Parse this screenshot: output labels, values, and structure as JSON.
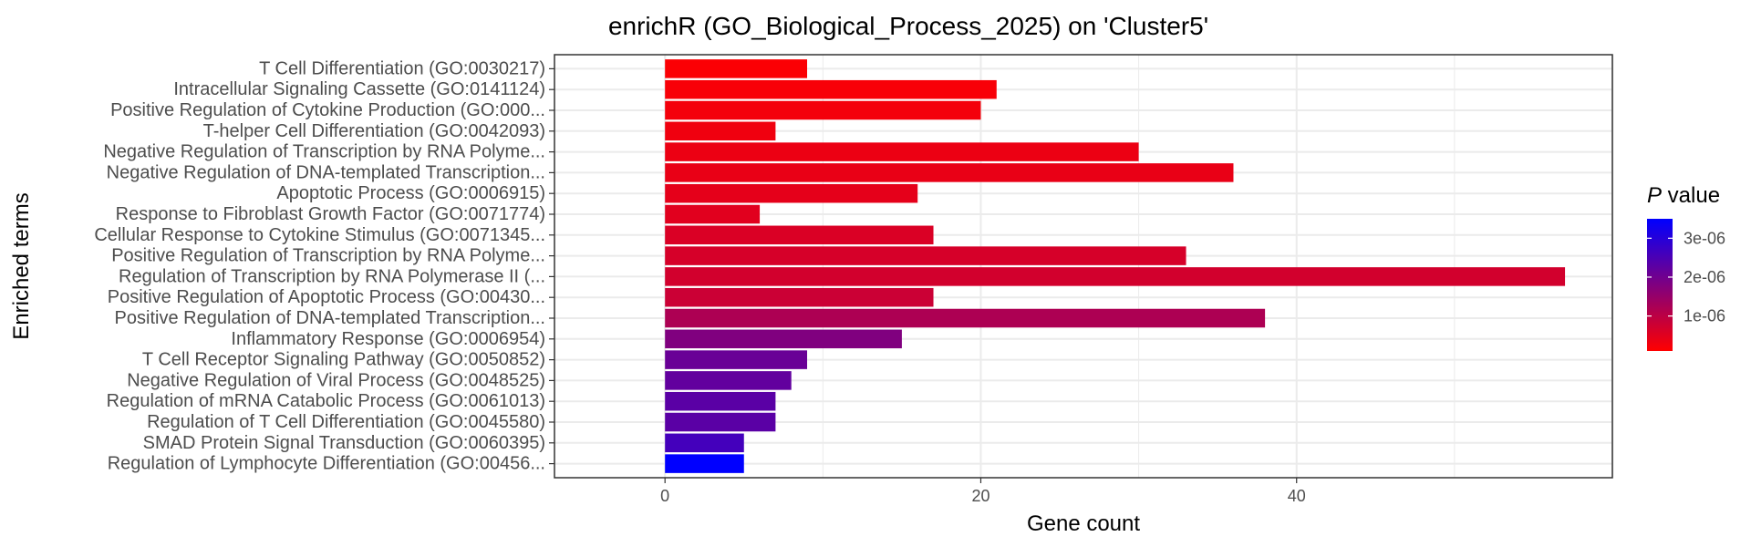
{
  "chart_data": {
    "type": "bar",
    "orientation": "horizontal",
    "title": "enrichR (GO_Biological_Process_2025) on 'Cluster5'",
    "xlabel": "Gene count",
    "ylabel": "Enriched terms",
    "xlim": [
      -7,
      60
    ],
    "xticks": [
      0,
      20,
      40
    ],
    "xtick_labels": [
      "0",
      "20",
      "40"
    ],
    "grid": true,
    "legend": {
      "title_italic": "P",
      "title_rest": " value",
      "placement": "right",
      "color_low": "#ff0000",
      "color_high": "#0000ff",
      "range": [
        1e-07,
        3.5e-06
      ],
      "ticks": [
        1e-06,
        2e-06,
        3e-06
      ],
      "tick_labels": [
        "1e-06",
        "2e-06",
        "3e-06"
      ]
    },
    "categories": [
      "T Cell Differentiation (GO:0030217)",
      "Intracellular Signaling Cassette (GO:0141124)",
      "Positive Regulation of Cytokine Production (GO:000...",
      "T-helper Cell Differentiation (GO:0042093)",
      "Negative Regulation of Transcription by RNA Polyme...",
      "Negative Regulation of DNA-templated Transcription...",
      "Apoptotic Process (GO:0006915)",
      "Response to Fibroblast Growth Factor (GO:0071774)",
      "Cellular Response to Cytokine Stimulus (GO:0071345...",
      "Positive Regulation of Transcription by RNA Polyme...",
      "Regulation of Transcription by RNA Polymerase II (...",
      "Positive Regulation of Apoptotic Process (GO:00430...",
      "Positive Regulation of DNA-templated Transcription...",
      "Inflammatory Response (GO:0006954)",
      "T Cell Receptor Signaling Pathway (GO:0050852)",
      "Negative Regulation of Viral Process (GO:0048525)",
      "Regulation of mRNA Catabolic Process (GO:0061013)",
      "Regulation of T Cell Differentiation (GO:0045580)",
      "SMAD Protein Signal Transduction (GO:0060395)",
      "Regulation of Lymphocyte Differentiation (GO:00456..."
    ],
    "values": [
      9,
      21,
      20,
      7,
      30,
      36,
      16,
      6,
      17,
      33,
      57,
      17,
      38,
      15,
      9,
      8,
      7,
      7,
      5,
      5
    ],
    "p_values": [
      1.5e-07,
      2e-07,
      2.5e-07,
      3e-07,
      3.5e-07,
      4e-07,
      4.5e-07,
      5e-07,
      6e-07,
      6.5e-07,
      7e-07,
      8e-07,
      1.2e-06,
      1.8e-06,
      2.1e-06,
      2.2e-06,
      2.3e-06,
      2.3e-06,
      2.6e-06,
      3.5e-06
    ]
  }
}
